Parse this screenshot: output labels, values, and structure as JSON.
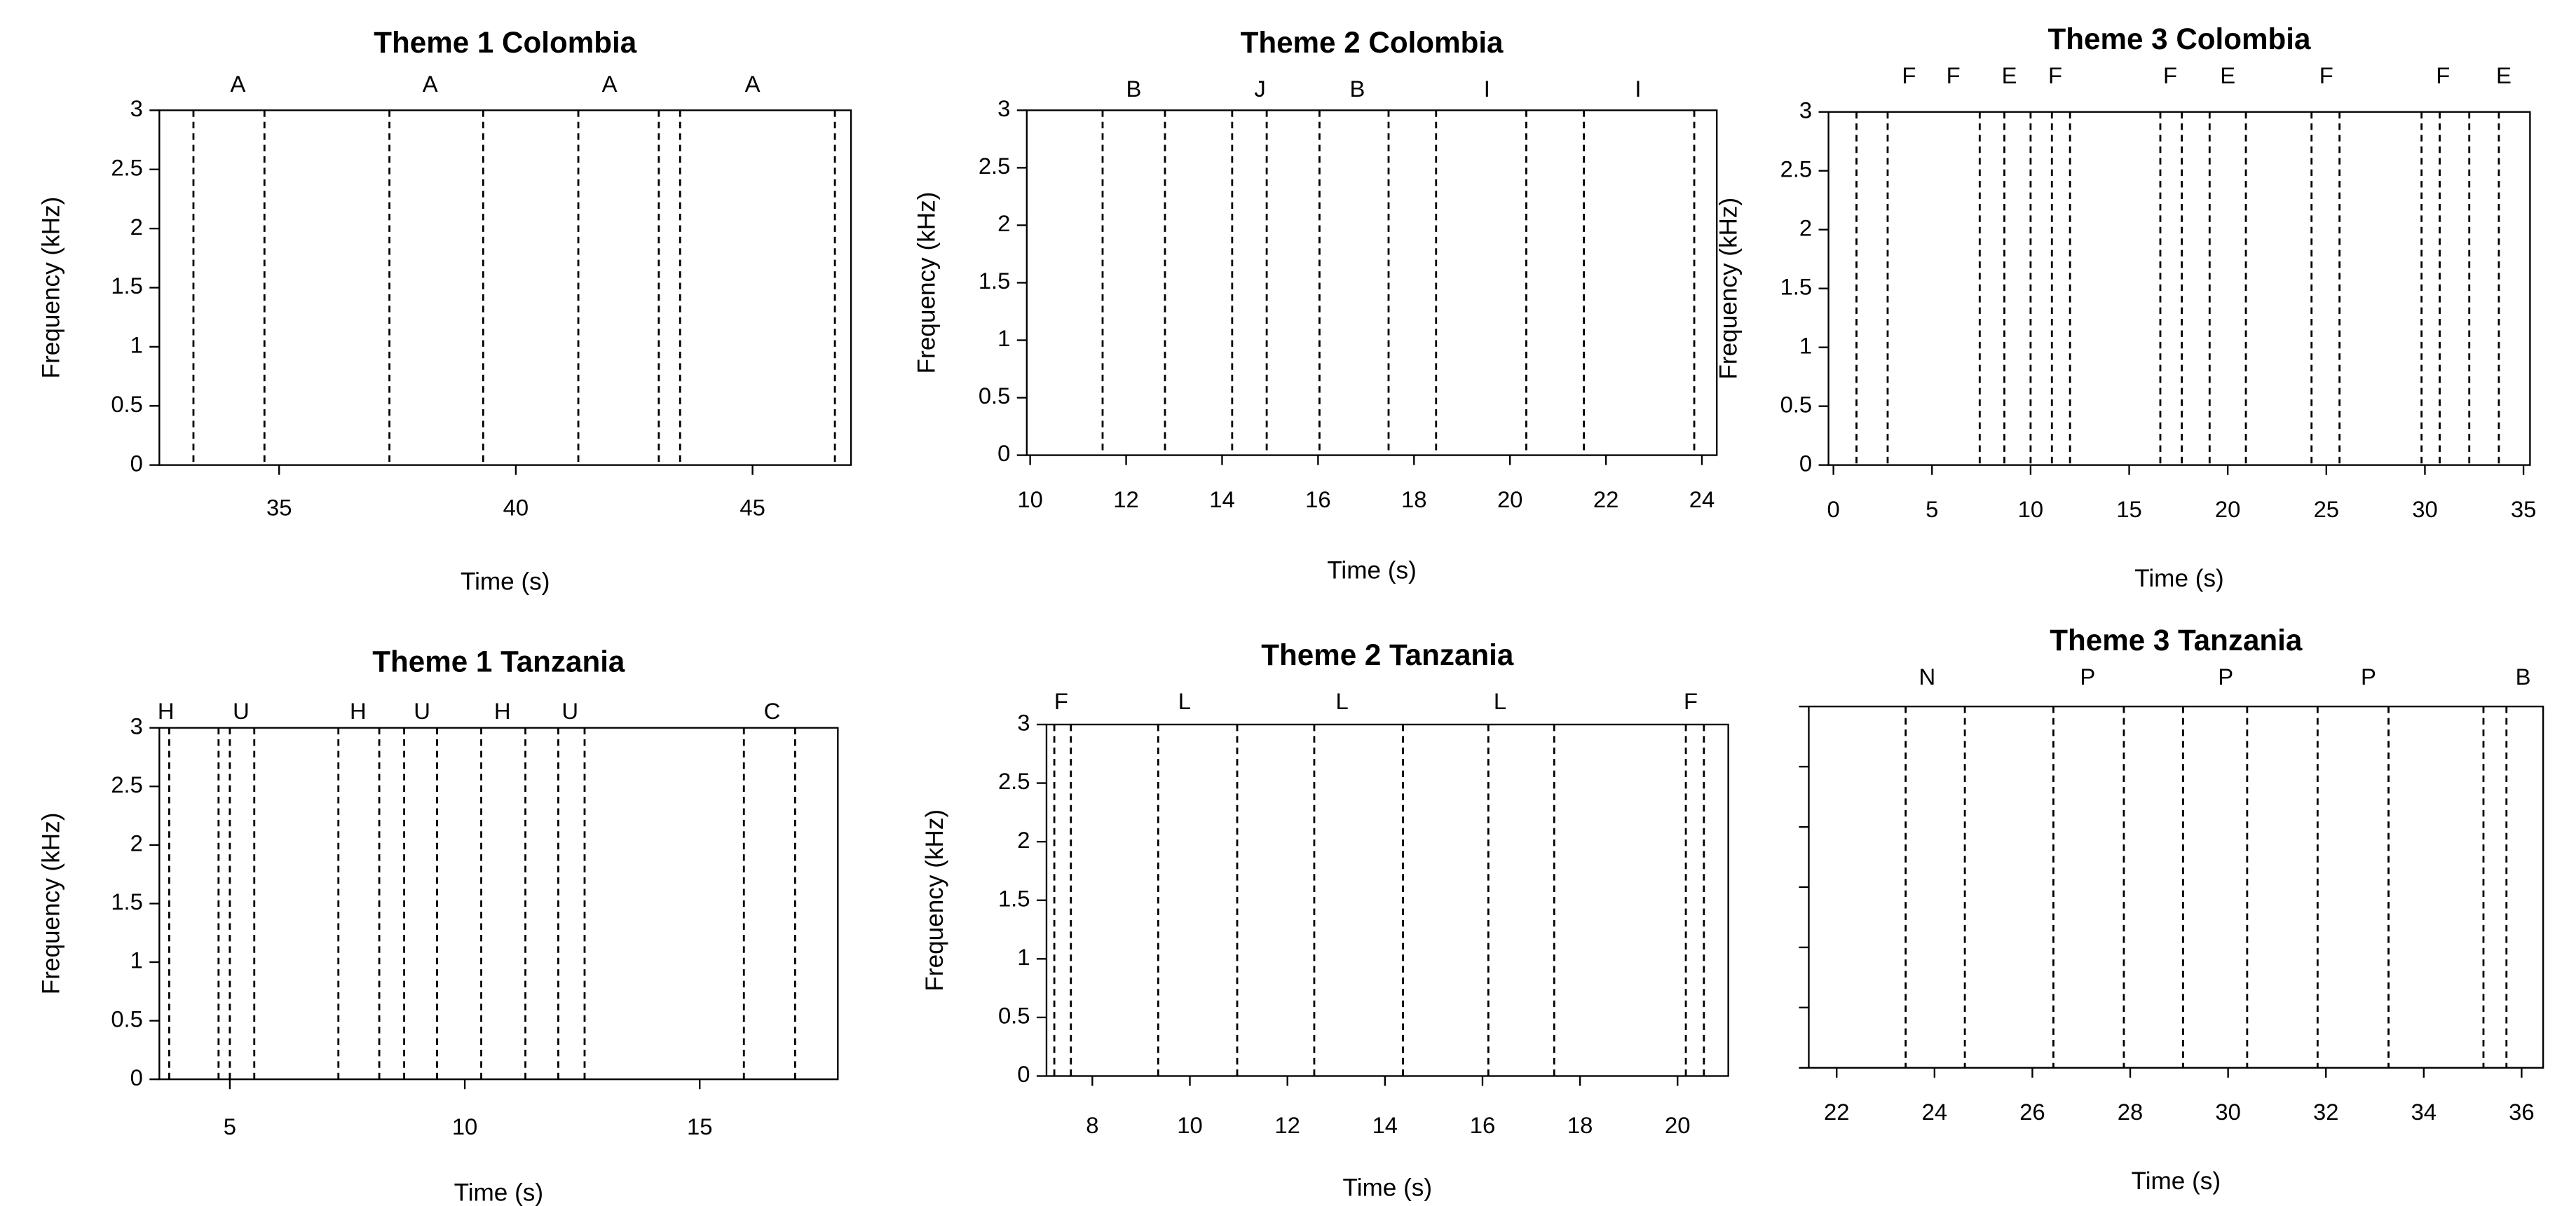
{
  "chart_data": [
    {
      "type": "spectrogram",
      "title": "Theme 1 Colombia",
      "xlabel": "Time (s)",
      "ylabel": "Frequency (kHz)",
      "xlim": [
        32.47,
        47.08
      ],
      "xticks": [
        35,
        40,
        45
      ],
      "ylim": [
        0,
        3
      ],
      "yticks": [
        0,
        0.5,
        1,
        1.5,
        2,
        2.5,
        3
      ],
      "boundaries": [
        33.19,
        34.69,
        37.33,
        39.31,
        41.32,
        43.02,
        43.47,
        46.74
      ],
      "labels": [
        {
          "text": "A",
          "t": 34.13
        },
        {
          "text": "A",
          "t": 38.19
        },
        {
          "text": "A",
          "t": 41.98
        },
        {
          "text": "A",
          "t": 45.0
        }
      ]
    },
    {
      "type": "spectrogram",
      "title": "Theme 2 Colombia",
      "xlabel": "Time (s)",
      "ylabel": "Frequency (kHz)",
      "xlim": [
        9.93,
        24.31
      ],
      "xticks": [
        10,
        12,
        14,
        16,
        18,
        20,
        22,
        24
      ],
      "ylim": [
        0,
        3
      ],
      "yticks": [
        0,
        0.5,
        1,
        1.5,
        2,
        2.5,
        3
      ],
      "boundaries": [
        11.51,
        12.81,
        14.21,
        14.93,
        16.03,
        17.47,
        18.46,
        20.34,
        21.54,
        23.84
      ],
      "labels": [
        {
          "text": "B",
          "t": 12.16
        },
        {
          "text": "J",
          "t": 14.79
        },
        {
          "text": "B",
          "t": 16.82
        },
        {
          "text": "I",
          "t": 19.52
        },
        {
          "text": "I",
          "t": 22.67
        }
      ]
    },
    {
      "type": "spectrogram",
      "title": "Theme 3 Colombia",
      "xlabel": "Time (s)",
      "ylabel": "Frequency (kHz)",
      "xlim": [
        -0.25,
        35.33
      ],
      "xticks": [
        0,
        5,
        10,
        15,
        20,
        25,
        30,
        35
      ],
      "ylim": [
        0,
        3
      ],
      "yticks": [
        0,
        0.5,
        1,
        1.5,
        2,
        2.5,
        3
      ],
      "boundaries": [
        1.17,
        2.75,
        7.42,
        8.67,
        10.0,
        11.08,
        12.0,
        16.58,
        17.67,
        19.08,
        20.92,
        24.25,
        25.67,
        29.83,
        30.75,
        32.25,
        33.75
      ],
      "labels": [
        {
          "text": "F",
          "t": 3.83
        },
        {
          "text": "F",
          "t": 6.08
        },
        {
          "text": "E",
          "t": 8.92
        },
        {
          "text": "F",
          "t": 11.25
        },
        {
          "text": "F",
          "t": 17.08
        },
        {
          "text": "E",
          "t": 20.0
        },
        {
          "text": "F",
          "t": 25.0
        },
        {
          "text": "F",
          "t": 30.92
        },
        {
          "text": "E",
          "t": 34.0
        }
      ]
    },
    {
      "type": "spectrogram",
      "title": "Theme 1 Tanzania",
      "xlabel": "Time (s)",
      "ylabel": "Frequency (kHz)",
      "xlim": [
        3.5,
        17.94
      ],
      "xticks": [
        5,
        10,
        15
      ],
      "ylim": [
        0,
        3
      ],
      "yticks": [
        0,
        0.5,
        1,
        1.5,
        2,
        2.5,
        3
      ],
      "boundaries": [
        3.71,
        4.76,
        5.0,
        5.52,
        7.31,
        8.18,
        8.71,
        9.41,
        10.35,
        11.29,
        11.99,
        12.55,
        15.94,
        17.03
      ],
      "labels": [
        {
          "text": "H",
          "t": 3.64
        },
        {
          "text": "U",
          "t": 5.24
        },
        {
          "text": "H",
          "t": 7.73
        },
        {
          "text": "U",
          "t": 9.09
        },
        {
          "text": "H",
          "t": 10.8
        },
        {
          "text": "U",
          "t": 12.24
        },
        {
          "text": "C",
          "t": 16.54
        }
      ]
    },
    {
      "type": "spectrogram",
      "title": "Theme 2 Tanzania",
      "xlabel": "Time (s)",
      "ylabel": "Frequency (kHz)",
      "xlim": [
        7.06,
        21.04
      ],
      "xticks": [
        8,
        10,
        12,
        14,
        16,
        18,
        20
      ],
      "ylim": [
        0,
        3
      ],
      "yticks": [
        0,
        0.5,
        1,
        1.5,
        2,
        2.5,
        3
      ],
      "boundaries": [
        7.22,
        7.56,
        9.35,
        10.97,
        12.55,
        14.37,
        16.12,
        17.47,
        20.17,
        20.54
      ],
      "labels": [
        {
          "text": "F",
          "t": 7.36
        },
        {
          "text": "L",
          "t": 9.89
        },
        {
          "text": "L",
          "t": 13.12
        },
        {
          "text": "L",
          "t": 16.36
        },
        {
          "text": "F",
          "t": 20.27
        }
      ]
    },
    {
      "type": "spectrogram",
      "title": "Theme 3 Tanzania",
      "xlabel": "Time (s)",
      "xlim": [
        21.43,
        36.44
      ],
      "xticks": [
        22,
        24,
        26,
        28,
        30,
        32,
        34,
        36
      ],
      "ylim": [
        0,
        3
      ],
      "yticks": [
        0,
        0.5,
        1,
        1.5,
        2,
        2.5,
        3
      ],
      "boundaries": [
        23.41,
        24.62,
        26.43,
        27.87,
        29.08,
        30.39,
        31.83,
        33.28,
        35.22,
        35.69
      ],
      "labels": [
        {
          "text": "N",
          "t": 23.85
        },
        {
          "text": "P",
          "t": 27.13
        },
        {
          "text": "P",
          "t": 29.95
        },
        {
          "text": "P",
          "t": 32.87
        },
        {
          "text": "B",
          "t": 36.03
        }
      ]
    }
  ]
}
